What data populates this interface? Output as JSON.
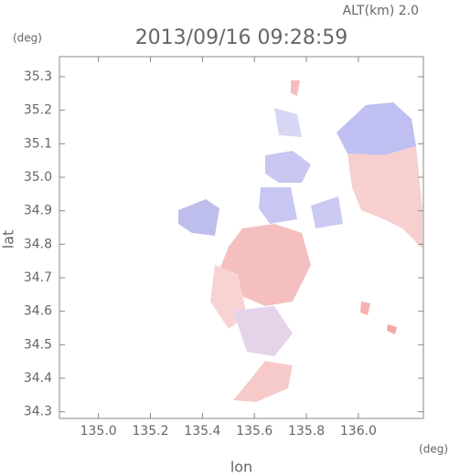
{
  "chart_data": {
    "type": "map",
    "title": "2013/09/16 09:28:59",
    "altitude_label": "ALT(km) 2.0",
    "y_unit": "(deg)",
    "x_unit": "(deg)",
    "xlabel": "lon",
    "ylabel": "lat",
    "xlim": [
      134.85,
      136.25
    ],
    "ylim": [
      34.28,
      35.36
    ],
    "xticks": [
      {
        "value": 135,
        "label": "135.0"
      },
      135.2,
      135.4,
      135.6,
      135.8,
      {
        "value": 136,
        "label": "136.0"
      }
    ],
    "yticks": [
      34.3,
      34.4,
      34.5,
      34.6,
      34.7,
      34.8,
      34.9,
      {
        "value": 35,
        "label": "35.0"
      },
      35.1,
      35.2,
      35.3
    ]
  }
}
